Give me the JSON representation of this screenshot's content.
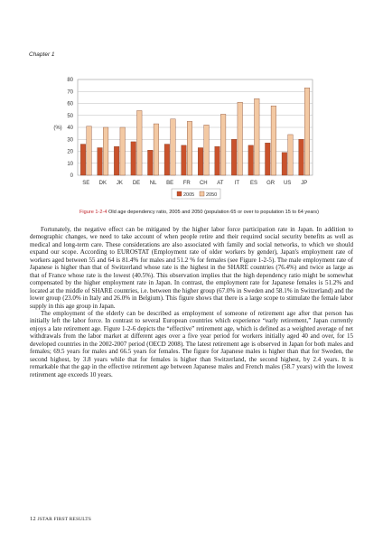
{
  "header": {
    "chapter": "Chapter 1"
  },
  "chart_data": {
    "type": "bar",
    "categories": [
      "SE",
      "DK",
      "JK",
      "DE",
      "NL",
      "BE",
      "FR",
      "CH",
      "AT",
      "IT",
      "ES",
      "GR",
      "US",
      "JP"
    ],
    "series": [
      {
        "name": "2005",
        "color": "#c9522c",
        "values": [
          26,
          23,
          24,
          28,
          21,
          26,
          25,
          23,
          24,
          30,
          25,
          27,
          19,
          30
        ]
      },
      {
        "name": "2050",
        "color": "#f3c9a3",
        "values": [
          41,
          40,
          40,
          54,
          43,
          47,
          45,
          42,
          51,
          61,
          64,
          58,
          34,
          73
        ]
      }
    ],
    "ylabel": "(%)",
    "ylim": [
      0,
      80
    ],
    "yticks": [
      0,
      10,
      20,
      30,
      40,
      50,
      60,
      70,
      80
    ],
    "grid": true,
    "legend": "bottom"
  },
  "caption": {
    "figure_number": "Figure 1-2-4",
    "text": " Old age dependency ratio, 2005 and 2050 (population 65 or over to population 15 to 64 years)"
  },
  "body": {
    "paragraphs": [
      "Fortunately, the negative effect can be mitigated by the higher labor force participation rate in Japan. In addition to demographic changes, we need to take account of when people retire and their required social security benefits as well as medical and long-term care. These considerations are also associated with family and social networks, to which we should expand our scope. According to EUROSTAT (Employment rate of older workers by gender), Japan's employment rate of workers aged between 55 and 64 is 81.4% for males and 51.2 % for females (see Figure 1-2-5). The male employment rate of Japanese is higher than that of Switzerland whose rate is the highest in the SHARE countries (76.4%) and twice as large as that of France whose rate is the lowest (40.5%). This observation implies that the high dependency ratio might be somewhat compensated by the higher employment rate in Japan. In contrast, the employment rate for Japanese females is 51.2% and located at the middle of SHARE countries, i.e. between the higher group (67.0% in Sweden and 58.1% in Switzerland) and the lower group (23.0% in Italy and 26.0% in Belgium). This figure shows that there is a large scope to stimulate the female labor supply in this age group in Japan.",
      "The employment of the elderly can be described as employment of someone of retirement age after that person has initially left the labor force. In contrast to several European countries which experience “early retirement,” Japan currently enjoys a late retirement age. Figure 1-2-6 depicts the “effective” retirement age, which is defined as a weighted average of net withdrawals from the labor market at different ages over a five year period for workers initially aged 40 and over, for 15 developed countries in the 2002-2007 period (OECD 2008). The latest retirement age is observed in Japan for both males and females; 69.5 years for males and 66.5 years for females. The figure for Japanese males is higher than that for Sweden, the second highest, by 3.8 years while that for females is higher than Switzerland, the second highest, by 2.4 years. It is remarkable that the gap in the effective retirement age between Japanese males and French males (58.7 years) with the lowest retirement age exceeds 10 years."
    ]
  },
  "footer": {
    "page_number": "12",
    "brand": "JSTAR FIRST RESULTS"
  }
}
